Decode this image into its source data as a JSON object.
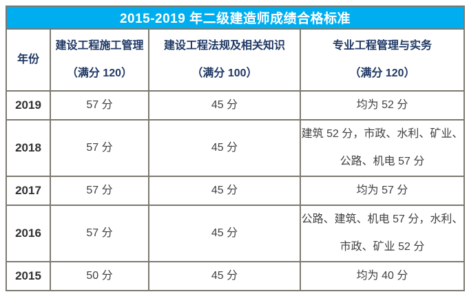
{
  "title": "2015-2019 年二级建造师成绩合格标准",
  "colors": {
    "title_bg": "#00aeef",
    "title_text": "#ffffff",
    "column_header_text": "#1f3864",
    "body_text": "#3f3f3f",
    "border": "#7b786e",
    "page_bg": "#ffffff"
  },
  "table": {
    "columns": [
      {
        "label": "年份",
        "sub": ""
      },
      {
        "label": "建设工程施工管理",
        "sub": "（满分 120）"
      },
      {
        "label": "建设工程法规及相关知识",
        "sub": "（满分 100）"
      },
      {
        "label": "专业工程管理与实务",
        "sub": "（满分 120）"
      }
    ],
    "rows": [
      {
        "year": "2019",
        "management": "57 分",
        "regulations": "45 分",
        "practice": "均为 52 分"
      },
      {
        "year": "2018",
        "management": "57 分",
        "regulations": "45 分",
        "practice": "建筑 52 分，市政、水利、矿业、\n公路、机电 57 分"
      },
      {
        "year": "2017",
        "management": "57 分",
        "regulations": "45 分",
        "practice": "均为 57 分"
      },
      {
        "year": "2016",
        "management": "57 分",
        "regulations": "45 分",
        "practice": "公路、建筑、机电 57 分，水利、\n市政、矿业 52 分"
      },
      {
        "year": "2015",
        "management": "50 分",
        "regulations": "45 分",
        "practice": "均为 40 分"
      }
    ]
  }
}
